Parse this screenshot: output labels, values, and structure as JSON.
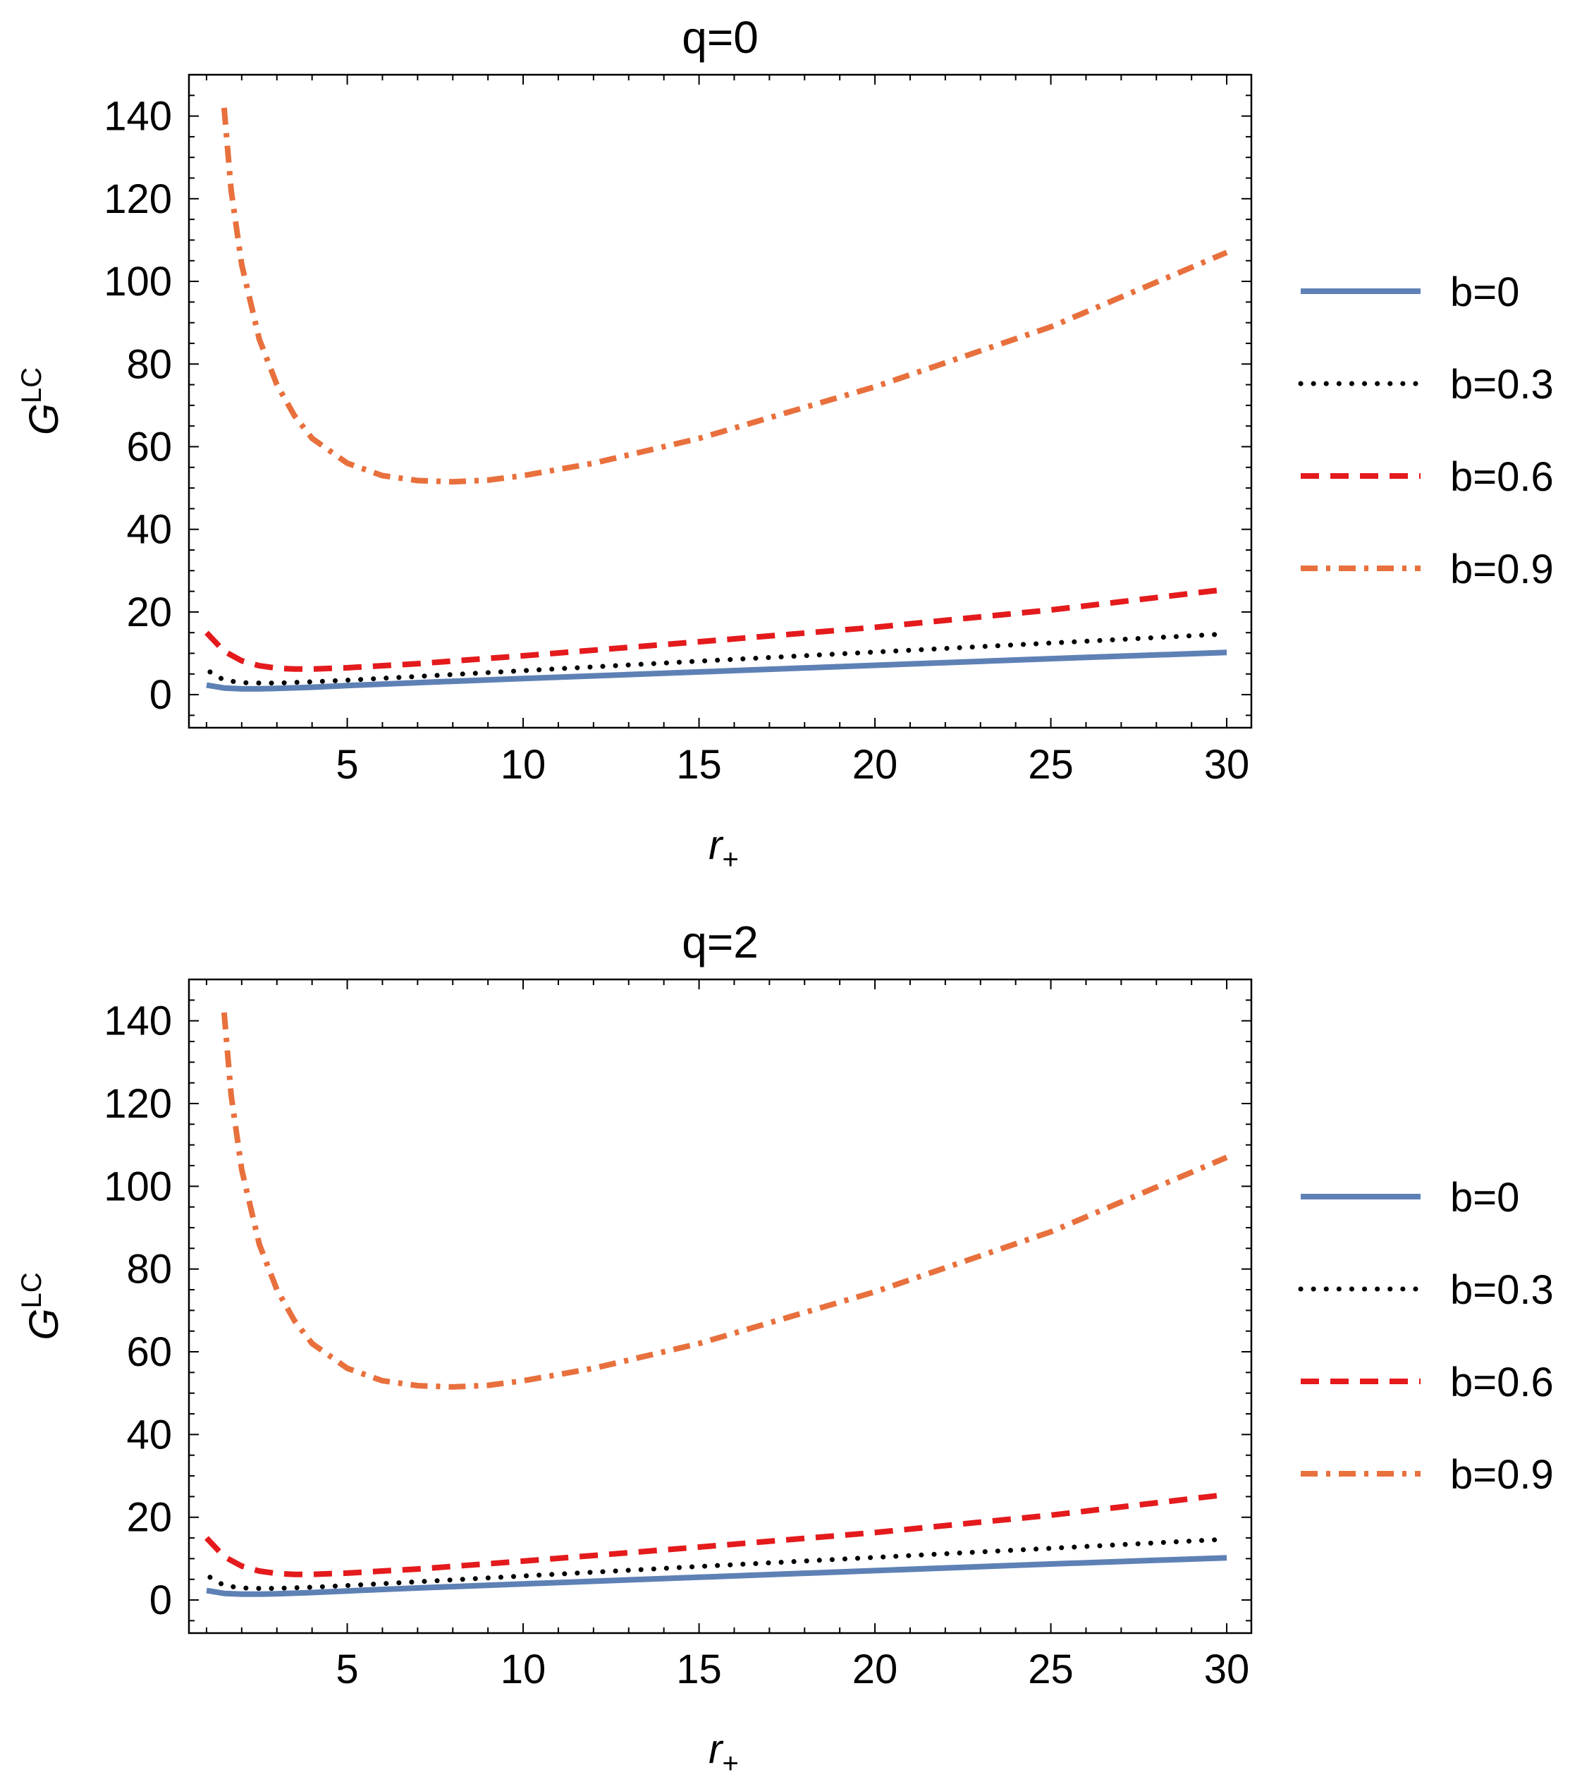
{
  "chart_data": [
    {
      "type": "line",
      "title": "q=0",
      "xlabel": {
        "base": "r",
        "subscript": "+"
      },
      "ylabel": {
        "base": "G",
        "superscript": "LC"
      },
      "xlim": [
        0.5,
        30.7
      ],
      "ylim": [
        -8,
        150
      ],
      "xticks": [
        5,
        10,
        15,
        20,
        25,
        30
      ],
      "yticks": [
        0,
        20,
        40,
        60,
        80,
        100,
        120,
        140
      ],
      "grid": false,
      "legend_position": "right",
      "series": [
        {
          "name": "b=0",
          "color": "#5E81B5",
          "style": "solid",
          "x": [
            1.0,
            1.5,
            2.0,
            2.5,
            3,
            4,
            5,
            7,
            10,
            15,
            20,
            25,
            30
          ],
          "y": [
            2.3,
            1.6,
            1.4,
            1.4,
            1.5,
            1.8,
            2.2,
            2.9,
            3.9,
            5.5,
            7.1,
            8.7,
            10.2
          ]
        },
        {
          "name": "b=0.3",
          "color": "#000000",
          "style": "dotted",
          "x": [
            1.1,
            1.5,
            2.0,
            2.5,
            3,
            4,
            5,
            7,
            10,
            15,
            20,
            25,
            30
          ],
          "y": [
            5.5,
            3.5,
            2.9,
            2.8,
            2.8,
            3.1,
            3.5,
            4.4,
            5.8,
            8.1,
            10.3,
            12.5,
            14.7
          ]
        },
        {
          "name": "b=0.6",
          "color": "#E41A1C",
          "style": "dashed",
          "x": [
            1.0,
            1.5,
            2.0,
            2.5,
            3,
            3.5,
            4,
            5,
            7,
            10,
            15,
            20,
            25,
            30
          ],
          "y": [
            15,
            10.5,
            8.2,
            7.0,
            6.4,
            6.2,
            6.2,
            6.5,
            7.5,
            9.4,
            12.8,
            16.3,
            20.5,
            25.5
          ]
        },
        {
          "name": "b=0.9",
          "color": "#E8703D",
          "style": "dash-dot",
          "x": [
            1.5,
            1.7,
            2.0,
            2.5,
            3,
            3.5,
            4,
            5,
            6,
            7,
            8,
            9,
            10,
            12,
            15,
            20,
            25,
            30
          ],
          "y": [
            142,
            122,
            104,
            86,
            75,
            67.5,
            62,
            56,
            53,
            51.8,
            51.5,
            51.9,
            53,
            56,
            62,
            74.5,
            89,
            107
          ]
        }
      ]
    },
    {
      "type": "line",
      "title": "q=2",
      "xlabel": {
        "base": "r",
        "subscript": "+"
      },
      "ylabel": {
        "base": "G",
        "superscript": "LC"
      },
      "xlim": [
        0.5,
        30.7
      ],
      "ylim": [
        -8,
        150
      ],
      "xticks": [
        5,
        10,
        15,
        20,
        25,
        30
      ],
      "yticks": [
        0,
        20,
        40,
        60,
        80,
        100,
        120,
        140
      ],
      "grid": false,
      "legend_position": "right",
      "series": [
        {
          "name": "b=0",
          "color": "#5E81B5",
          "style": "solid",
          "x": [
            1.0,
            1.5,
            2.0,
            2.5,
            3,
            4,
            5,
            7,
            10,
            15,
            20,
            25,
            30
          ],
          "y": [
            2.3,
            1.6,
            1.4,
            1.4,
            1.5,
            1.8,
            2.2,
            2.9,
            3.9,
            5.5,
            7.1,
            8.7,
            10.2
          ]
        },
        {
          "name": "b=0.3",
          "color": "#000000",
          "style": "dotted",
          "x": [
            1.1,
            1.5,
            2.0,
            2.5,
            3,
            4,
            5,
            7,
            10,
            15,
            20,
            25,
            30
          ],
          "y": [
            5.5,
            3.5,
            2.9,
            2.8,
            2.8,
            3.1,
            3.5,
            4.4,
            5.8,
            8.1,
            10.3,
            12.5,
            14.7
          ]
        },
        {
          "name": "b=0.6",
          "color": "#E41A1C",
          "style": "dashed",
          "x": [
            1.0,
            1.5,
            2.0,
            2.5,
            3,
            3.5,
            4,
            5,
            7,
            10,
            15,
            20,
            25,
            30
          ],
          "y": [
            15,
            10.5,
            8.2,
            7.0,
            6.4,
            6.2,
            6.2,
            6.5,
            7.5,
            9.4,
            12.8,
            16.3,
            20.5,
            25.5
          ]
        },
        {
          "name": "b=0.9",
          "color": "#E8703D",
          "style": "dash-dot",
          "x": [
            1.5,
            1.7,
            2.0,
            2.5,
            3,
            3.5,
            4,
            5,
            6,
            7,
            8,
            9,
            10,
            12,
            15,
            20,
            25,
            30
          ],
          "y": [
            142,
            122,
            104,
            86,
            75,
            67.5,
            62,
            56,
            53,
            51.8,
            51.5,
            51.9,
            53,
            56,
            62,
            74.5,
            89,
            107
          ]
        }
      ]
    }
  ]
}
